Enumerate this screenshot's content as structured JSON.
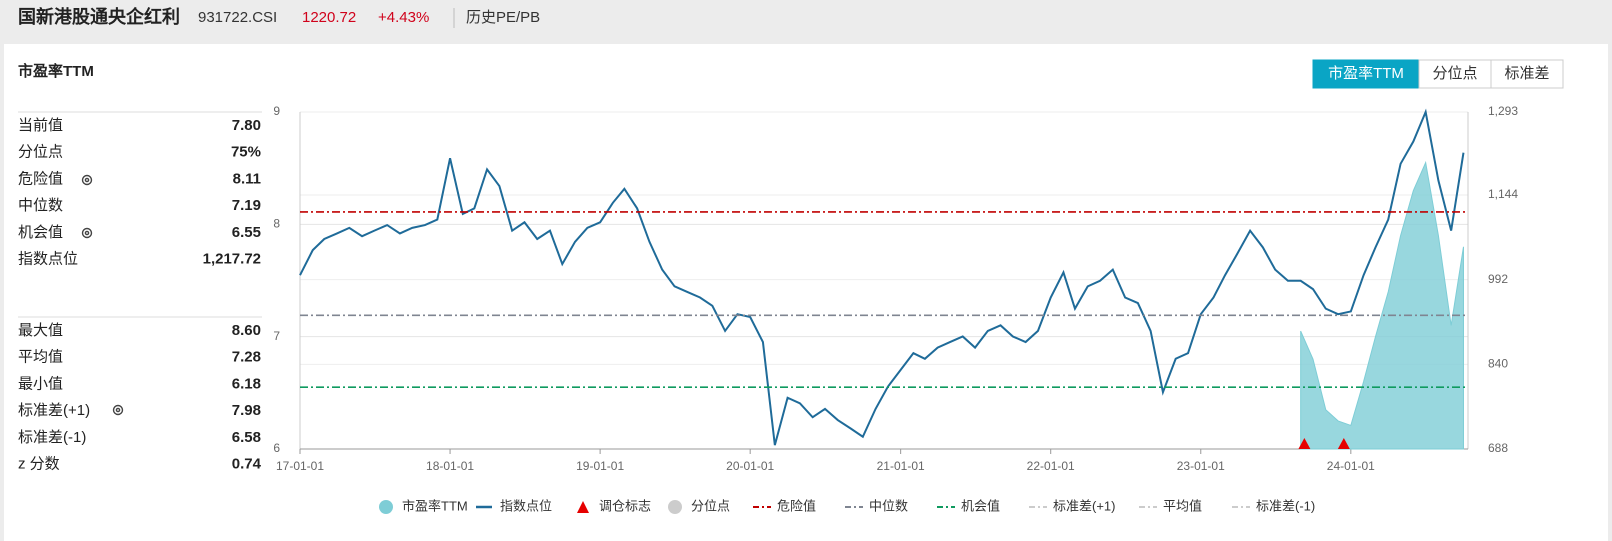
{
  "header": {
    "title": "国新港股通央企红利",
    "code": "931722.CSI",
    "price": "1220.72",
    "change": "+4.43%",
    "link": "历史PE/PB"
  },
  "panel_title": "市盈率TTM",
  "tabs": [
    "市盈率TTM",
    "分位点",
    "标准差"
  ],
  "stats": [
    [
      {
        "label": "当前值",
        "value": "7.80"
      },
      {
        "label": "分位点",
        "value": "75%"
      },
      {
        "label": "危险值",
        "value": "8.11"
      },
      {
        "label": "中位数",
        "value": "7.19"
      },
      {
        "label": "机会值",
        "value": "6.55"
      },
      {
        "label": "指数点位",
        "value": "1,217.72"
      }
    ],
    [
      {
        "label": "最大值",
        "value": "8.60"
      },
      {
        "label": "平均值",
        "value": "7.28"
      },
      {
        "label": "最小值",
        "value": "6.18"
      },
      {
        "label": "标准差(+1)",
        "value": "7.98"
      },
      {
        "label": "标准差(-1)",
        "value": "6.58"
      },
      {
        "label": "z 分数",
        "value": "0.74"
      }
    ]
  ],
  "chart_data": {
    "type": "line",
    "x": [
      "17-01-01",
      "17-02-01",
      "17-03-01",
      "17-04-01",
      "17-05-01",
      "17-06-01",
      "17-07-01",
      "17-08-01",
      "17-09-01",
      "17-10-01",
      "17-11-01",
      "17-12-01",
      "18-01-01",
      "18-02-01",
      "18-03-01",
      "18-04-01",
      "18-05-01",
      "18-06-01",
      "18-07-01",
      "18-08-01",
      "18-09-01",
      "18-10-01",
      "18-11-01",
      "18-12-01",
      "19-01-01",
      "19-02-01",
      "19-03-01",
      "19-04-01",
      "19-05-01",
      "19-06-01",
      "19-07-01",
      "19-08-01",
      "19-09-01",
      "19-10-01",
      "19-11-01",
      "19-12-01",
      "20-01-01",
      "20-02-01",
      "20-03-01",
      "20-04-01",
      "20-05-01",
      "20-06-01",
      "20-07-01",
      "20-08-01",
      "20-09-01",
      "20-10-01",
      "20-11-01",
      "20-12-01",
      "21-01-01",
      "21-02-01",
      "21-03-01",
      "21-04-01",
      "21-05-01",
      "21-06-01",
      "21-07-01",
      "21-08-01",
      "21-09-01",
      "21-10-01",
      "21-11-01",
      "21-12-01",
      "22-01-01",
      "22-02-01",
      "22-03-01",
      "22-04-01",
      "22-05-01",
      "22-06-01",
      "22-07-01",
      "22-08-01",
      "22-09-01",
      "22-10-01",
      "22-11-01",
      "22-12-01",
      "23-01-01",
      "23-02-01",
      "23-03-01",
      "23-04-01",
      "23-05-01",
      "23-06-01",
      "23-07-01",
      "23-08-01",
      "23-09-01",
      "23-10-01",
      "23-11-01",
      "23-12-01",
      "24-01-01",
      "24-02-01",
      "24-03-01",
      "24-04-01",
      "24-05-01",
      "24-06-01",
      "24-07-01",
      "24-08-01",
      "24-09-01",
      "24-10-01"
    ],
    "xlim": [
      "17-01-01",
      "24-10-12"
    ],
    "xticks": [
      "17-01-01",
      "18-01-01",
      "19-01-01",
      "20-01-01",
      "21-01-01",
      "22-01-01",
      "23-01-01",
      "24-01-01"
    ],
    "ylim": [
      6,
      9
    ],
    "yticks": [
      6,
      7,
      8,
      9
    ],
    "y2lim": [
      688,
      1293
    ],
    "y2ticks": [
      688,
      840,
      992,
      {
        "value": 1144,
        "label": "1,144"
      },
      {
        "value": 1293,
        "label": "1,293"
      }
    ],
    "grid": true,
    "series": [
      {
        "name": "市盈率TTM",
        "type": "area",
        "color": "#7ecdd6",
        "values": [
          null,
          null,
          null,
          null,
          null,
          null,
          null,
          null,
          null,
          null,
          null,
          null,
          null,
          null,
          null,
          null,
          null,
          null,
          null,
          null,
          null,
          null,
          null,
          null,
          null,
          null,
          null,
          null,
          null,
          null,
          null,
          null,
          null,
          null,
          null,
          null,
          null,
          null,
          null,
          null,
          null,
          null,
          null,
          null,
          null,
          null,
          null,
          null,
          null,
          null,
          null,
          null,
          null,
          null,
          null,
          null,
          null,
          null,
          null,
          null,
          null,
          null,
          null,
          null,
          null,
          null,
          null,
          null,
          null,
          null,
          null,
          null,
          null,
          null,
          null,
          null,
          null,
          null,
          null,
          null,
          7.05,
          6.8,
          6.35,
          6.25,
          6.21,
          6.6,
          7.0,
          7.4,
          7.9,
          8.3,
          8.55,
          7.9,
          7.1,
          7.8
        ]
      },
      {
        "name": "指数点位",
        "type": "line",
        "axis": "y2",
        "color": "#1f6b99",
        "values": [
          1000,
          1045,
          1065,
          1075,
          1085,
          1070,
          1080,
          1090,
          1075,
          1085,
          1090,
          1100,
          1210,
          1110,
          1120,
          1190,
          1160,
          1080,
          1095,
          1065,
          1080,
          1020,
          1060,
          1085,
          1095,
          1130,
          1155,
          1120,
          1060,
          1010,
          980,
          970,
          960,
          945,
          900,
          930,
          925,
          880,
          695,
          780,
          770,
          745,
          760,
          740,
          725,
          710,
          760,
          800,
          830,
          860,
          850,
          870,
          880,
          890,
          870,
          900,
          910,
          890,
          880,
          900,
          960,
          1005,
          940,
          980,
          990,
          1010,
          960,
          950,
          900,
          790,
          850,
          860,
          930,
          960,
          1000,
          1040,
          1080,
          1050,
          1010,
          990,
          990,
          975,
          940,
          930,
          935,
          1000,
          1050,
          1100,
          1200,
          1240,
          1293,
          1170,
          1080,
          1220
        ]
      },
      {
        "name": "调仓标志",
        "type": "marker",
        "color": "#e60000",
        "x": [
          "23-09-10",
          "23-12-15"
        ]
      },
      {
        "name": "分位点",
        "type": "dot",
        "color": "#cccccc",
        "visible": false
      },
      {
        "name": "危险值",
        "type": "hline",
        "color": "#c00000",
        "value": 8.11
      },
      {
        "name": "中位数",
        "type": "hline",
        "color": "#7f8591",
        "value": 7.19
      },
      {
        "name": "机会值",
        "type": "hline",
        "color": "#0f9a5f",
        "value": 6.55
      },
      {
        "name": "标准差(+1)",
        "type": "hline",
        "color": "#cccccc",
        "visible": false
      },
      {
        "name": "平均值",
        "type": "hline",
        "color": "#cccccc",
        "visible": false
      },
      {
        "name": "标准差(-1)",
        "type": "hline",
        "color": "#cccccc",
        "visible": false
      }
    ]
  }
}
